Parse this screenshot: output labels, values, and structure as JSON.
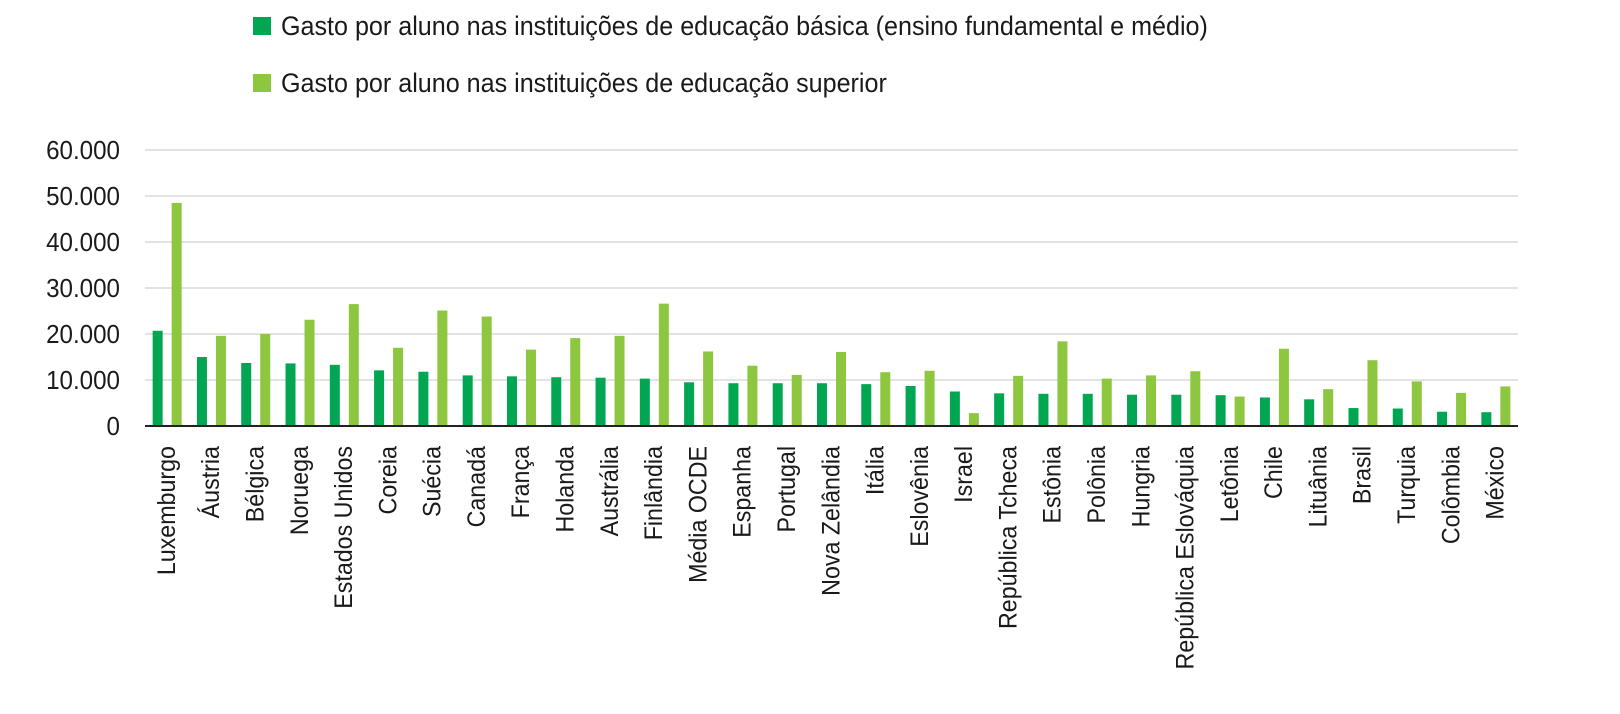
{
  "chart_data": {
    "type": "bar",
    "title": "",
    "xlabel": "",
    "ylabel": "",
    "ylim": [
      0,
      60000
    ],
    "yticks": [
      0,
      10000,
      20000,
      30000,
      40000,
      50000,
      60000
    ],
    "ytick_labels": [
      "0",
      "10.000",
      "20.000",
      "30.000",
      "40.000",
      "50.000",
      "60.000"
    ],
    "grid": true,
    "legend_position": "top",
    "categories": [
      "Luxemburgo",
      "Áustria",
      "Bélgica",
      "Noruega",
      "Estados Unidos",
      "Coreia",
      "Suécia",
      "Canadá",
      "França",
      "Holanda",
      "Austrália",
      "Finlândia",
      "Média OCDE",
      "Espanha",
      "Portugal",
      "Nova Zelândia",
      "Itália",
      "Eslovênia",
      "Israel",
      "República Tcheca",
      "Estônia",
      "Polônia",
      "Hungria",
      "República Eslováquia",
      "Letônia",
      "Chile",
      "Lituânia",
      "Brasil",
      "Turquia",
      "Colômbia",
      "México"
    ],
    "series": [
      {
        "name": "Gasto por aluno nas instituições de educação básica (ensino fundamental e médio)",
        "color": "#00a651",
        "values": [
          20700,
          15000,
          13700,
          13600,
          13300,
          12100,
          11800,
          11000,
          10800,
          10600,
          10500,
          10300,
          9500,
          9300,
          9300,
          9300,
          9100,
          8700,
          7500,
          7100,
          7000,
          7000,
          6800,
          6800,
          6700,
          6200,
          5800,
          3900,
          3800,
          3100,
          3000
        ]
      },
      {
        "name": "Gasto por aluno nas instituições de  educação superior",
        "color": "#8dc63f",
        "values": [
          48500,
          19600,
          20000,
          23100,
          26500,
          17000,
          25100,
          23800,
          16600,
          19100,
          19600,
          26600,
          16200,
          13100,
          11100,
          16100,
          11700,
          12000,
          2800,
          10900,
          18400,
          10300,
          11000,
          11900,
          6400,
          16800,
          8000,
          14300,
          9700,
          7200,
          8600
        ]
      }
    ],
    "grid_color": "#e3e3e3",
    "axis_color": "#222222"
  }
}
